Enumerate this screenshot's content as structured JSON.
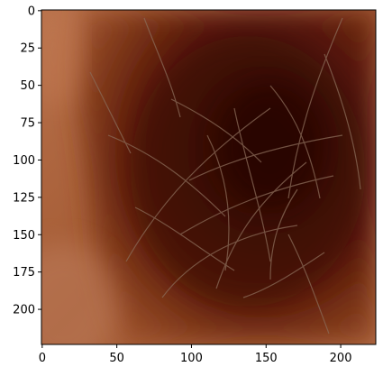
{
  "image": {
    "description_hidden": "",
    "extent": {
      "x": [
        0,
        224
      ],
      "y": [
        224,
        0
      ]
    },
    "palette": {
      "skin_light": "#b7704a",
      "skin_mid": "#9a4f2b",
      "lesion_dark": "#4b1408",
      "lesion_core": "#2a0804",
      "hair": "#8a6b58"
    }
  },
  "axes": {
    "x_ticks": [
      {
        "value": 0,
        "label": "0"
      },
      {
        "value": 50,
        "label": "50"
      },
      {
        "value": 100,
        "label": "100"
      },
      {
        "value": 150,
        "label": "150"
      },
      {
        "value": 200,
        "label": "200"
      }
    ],
    "y_ticks": [
      {
        "value": 0,
        "label": "0"
      },
      {
        "value": 25,
        "label": "25"
      },
      {
        "value": 50,
        "label": "50"
      },
      {
        "value": 75,
        "label": "75"
      },
      {
        "value": 100,
        "label": "100"
      },
      {
        "value": 125,
        "label": "125"
      },
      {
        "value": 150,
        "label": "150"
      },
      {
        "value": 175,
        "label": "175"
      },
      {
        "value": 200,
        "label": "200"
      }
    ]
  }
}
